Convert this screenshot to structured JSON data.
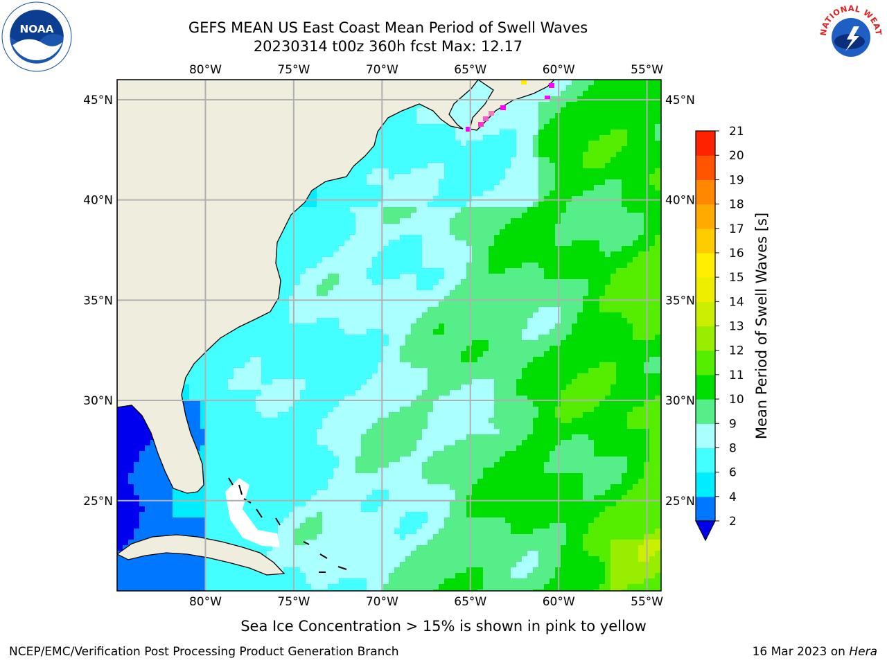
{
  "header": {
    "title_line1": "GEFS MEAN US East Coast Mean Period of Swell Waves",
    "title_line2": "20230314 t00z 360h fcst   Max: 12.17"
  },
  "logos": {
    "left": {
      "icon": "noaa-logo",
      "text": "NOAA"
    },
    "right": {
      "icon": "nws-logo",
      "text": "NATIONAL WEATHER SERVICE"
    }
  },
  "map": {
    "projection": "cylindrical",
    "lon_range": [
      -85,
      -54.2
    ],
    "lat_range": [
      20.5,
      46
    ],
    "lon_ticks": [
      {
        "value": -80,
        "label": "80°W"
      },
      {
        "value": -75,
        "label": "75°W"
      },
      {
        "value": -70,
        "label": "70°W"
      },
      {
        "value": -65,
        "label": "65°W"
      },
      {
        "value": -60,
        "label": "60°W"
      },
      {
        "value": -55,
        "label": "55°W"
      }
    ],
    "lat_ticks": [
      {
        "value": 45,
        "label": "45°N"
      },
      {
        "value": 40,
        "label": "40°N"
      },
      {
        "value": 35,
        "label": "35°N"
      },
      {
        "value": 30,
        "label": "30°N"
      },
      {
        "value": 25,
        "label": "25°N"
      }
    ],
    "gridlines": true,
    "land_color": "#efedde",
    "grid_color": "#b0b0b0"
  },
  "colorbar": {
    "label": "Mean Period of Swell Waves [s]",
    "extend": "min",
    "under_color": "#0000ee",
    "levels": [
      2,
      4,
      6,
      8,
      9,
      10,
      11,
      12,
      13,
      14,
      15,
      16,
      17,
      18,
      19,
      20,
      21
    ],
    "colors": [
      "#0077ff",
      "#00eeff",
      "#44ffff",
      "#aaffff",
      "#55ee88",
      "#00dd00",
      "#55ee00",
      "#99ee00",
      "#ccee00",
      "#eeee00",
      "#ffee00",
      "#ffcc00",
      "#ffaa00",
      "#ff8800",
      "#ff5500",
      "#ff2200"
    ]
  },
  "footnote": "Sea Ice Concentration > 15% is shown in pink to yellow",
  "footer": {
    "left": "NCEP/EMC/Verification Post Processing Product Generation Branch",
    "right_prefix": "16 Mar 2023 on ",
    "right_italic": "Hera"
  }
}
